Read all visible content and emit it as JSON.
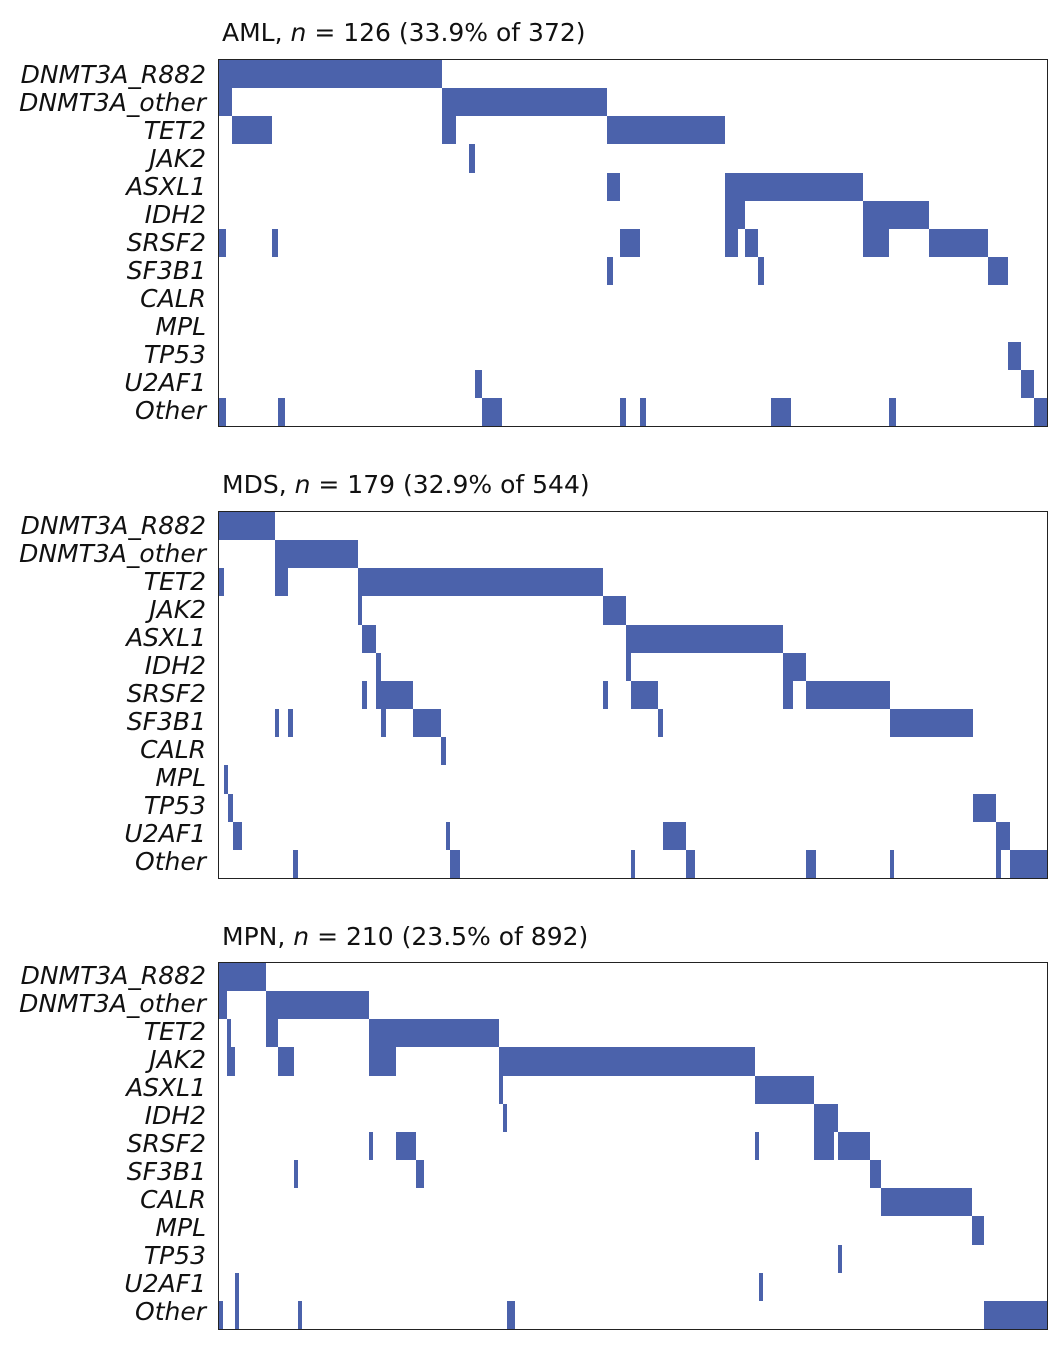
{
  "chart_data": [
    {
      "type": "heatmap",
      "title": {
        "cohort": "AML",
        "sep": ", ",
        "n_label": "n",
        "rest": " = 126 (33.9% of 372)"
      },
      "n_samples": 126,
      "total": 372,
      "percent": 33.9,
      "rows": [
        "DNMT3A_R882",
        "DNMT3A_other",
        "TET2",
        "JAK2",
        "ASXL1",
        "IDH2",
        "SRSF2",
        "SF3B1",
        "CALR",
        "MPL",
        "TP53",
        "U2AF1",
        "Other"
      ],
      "mutation_color": "#4B62AB",
      "mutated_segments": [
        {
          "gene": "DNMT3A_R882",
          "start": 0,
          "end": 34
        },
        {
          "gene": "DNMT3A_other",
          "start": 0,
          "end": 2
        },
        {
          "gene": "DNMT3A_other",
          "start": 34,
          "end": 59
        },
        {
          "gene": "TET2",
          "start": 2,
          "end": 8
        },
        {
          "gene": "TET2",
          "start": 34,
          "end": 36
        },
        {
          "gene": "TET2",
          "start": 59,
          "end": 77
        },
        {
          "gene": "JAK2",
          "start": 38,
          "end": 39
        },
        {
          "gene": "ASXL1",
          "start": 59,
          "end": 61
        },
        {
          "gene": "ASXL1",
          "start": 77,
          "end": 98
        },
        {
          "gene": "IDH2",
          "start": 77,
          "end": 80
        },
        {
          "gene": "IDH2",
          "start": 98,
          "end": 108
        },
        {
          "gene": "SRSF2",
          "start": 0,
          "end": 1
        },
        {
          "gene": "SRSF2",
          "start": 8,
          "end": 9
        },
        {
          "gene": "SRSF2",
          "start": 61,
          "end": 64
        },
        {
          "gene": "SRSF2",
          "start": 77,
          "end": 79
        },
        {
          "gene": "SRSF2",
          "start": 80,
          "end": 82
        },
        {
          "gene": "SRSF2",
          "start": 98,
          "end": 102
        },
        {
          "gene": "SRSF2",
          "start": 108,
          "end": 117
        },
        {
          "gene": "SF3B1",
          "start": 59,
          "end": 60
        },
        {
          "gene": "SF3B1",
          "start": 82,
          "end": 83
        },
        {
          "gene": "SF3B1",
          "start": 117,
          "end": 120
        },
        {
          "gene": "TP53",
          "start": 120,
          "end": 122
        },
        {
          "gene": "U2AF1",
          "start": 39,
          "end": 40
        },
        {
          "gene": "U2AF1",
          "start": 122,
          "end": 124
        },
        {
          "gene": "Other",
          "start": 0,
          "end": 1
        },
        {
          "gene": "Other",
          "start": 9,
          "end": 10
        },
        {
          "gene": "Other",
          "start": 40,
          "end": 43
        },
        {
          "gene": "Other",
          "start": 61,
          "end": 62
        },
        {
          "gene": "Other",
          "start": 64,
          "end": 65
        },
        {
          "gene": "Other",
          "start": 84,
          "end": 87
        },
        {
          "gene": "Other",
          "start": 102,
          "end": 103
        },
        {
          "gene": "Other",
          "start": 124,
          "end": 126
        }
      ]
    },
    {
      "type": "heatmap",
      "title": {
        "cohort": "MDS",
        "sep": ", ",
        "n_label": "n",
        "rest": " = 179 (32.9% of 544)"
      },
      "n_samples": 179,
      "total": 544,
      "percent": 32.9,
      "rows": [
        "DNMT3A_R882",
        "DNMT3A_other",
        "TET2",
        "JAK2",
        "ASXL1",
        "IDH2",
        "SRSF2",
        "SF3B1",
        "CALR",
        "MPL",
        "TP53",
        "U2AF1",
        "Other"
      ],
      "mutation_color": "#4B62AB",
      "mutated_segments": [
        {
          "gene": "DNMT3A_R882",
          "start": 0,
          "end": 12
        },
        {
          "gene": "DNMT3A_other",
          "start": 12,
          "end": 30
        },
        {
          "gene": "TET2",
          "start": 0,
          "end": 1
        },
        {
          "gene": "TET2",
          "start": 12,
          "end": 15
        },
        {
          "gene": "TET2",
          "start": 30,
          "end": 83
        },
        {
          "gene": "JAK2",
          "start": 30,
          "end": 31
        },
        {
          "gene": "JAK2",
          "start": 83,
          "end": 88
        },
        {
          "gene": "ASXL1",
          "start": 31,
          "end": 34
        },
        {
          "gene": "ASXL1",
          "start": 88,
          "end": 122
        },
        {
          "gene": "IDH2",
          "start": 34,
          "end": 35
        },
        {
          "gene": "IDH2",
          "start": 88,
          "end": 89
        },
        {
          "gene": "IDH2",
          "start": 122,
          "end": 127
        },
        {
          "gene": "SRSF2",
          "start": 31,
          "end": 32
        },
        {
          "gene": "SRSF2",
          "start": 34,
          "end": 42
        },
        {
          "gene": "SRSF2",
          "start": 83,
          "end": 84
        },
        {
          "gene": "SRSF2",
          "start": 89,
          "end": 95
        },
        {
          "gene": "SRSF2",
          "start": 122,
          "end": 124
        },
        {
          "gene": "SRSF2",
          "start": 127,
          "end": 145
        },
        {
          "gene": "SF3B1",
          "start": 12,
          "end": 13
        },
        {
          "gene": "SF3B1",
          "start": 15,
          "end": 16
        },
        {
          "gene": "SF3B1",
          "start": 35,
          "end": 36
        },
        {
          "gene": "SF3B1",
          "start": 42,
          "end": 48
        },
        {
          "gene": "SF3B1",
          "start": 95,
          "end": 96
        },
        {
          "gene": "SF3B1",
          "start": 145,
          "end": 163
        },
        {
          "gene": "CALR",
          "start": 48,
          "end": 49
        },
        {
          "gene": "MPL",
          "start": 1,
          "end": 2
        },
        {
          "gene": "TP53",
          "start": 2,
          "end": 3
        },
        {
          "gene": "TP53",
          "start": 163,
          "end": 168
        },
        {
          "gene": "U2AF1",
          "start": 3,
          "end": 5
        },
        {
          "gene": "U2AF1",
          "start": 49,
          "end": 50
        },
        {
          "gene": "U2AF1",
          "start": 96,
          "end": 101
        },
        {
          "gene": "U2AF1",
          "start": 168,
          "end": 171
        },
        {
          "gene": "Other",
          "start": 16,
          "end": 17
        },
        {
          "gene": "Other",
          "start": 50,
          "end": 52
        },
        {
          "gene": "Other",
          "start": 89,
          "end": 90
        },
        {
          "gene": "Other",
          "start": 101,
          "end": 103
        },
        {
          "gene": "Other",
          "start": 127,
          "end": 129
        },
        {
          "gene": "Other",
          "start": 145,
          "end": 146
        },
        {
          "gene": "Other",
          "start": 168,
          "end": 169
        },
        {
          "gene": "Other",
          "start": 171,
          "end": 179
        }
      ]
    },
    {
      "type": "heatmap",
      "title": {
        "cohort": "MPN",
        "sep": ", ",
        "n_label": "n",
        "rest": " = 210 (23.5% of 892)"
      },
      "n_samples": 210,
      "total": 892,
      "percent": 23.5,
      "rows": [
        "DNMT3A_R882",
        "DNMT3A_other",
        "TET2",
        "JAK2",
        "ASXL1",
        "IDH2",
        "SRSF2",
        "SF3B1",
        "CALR",
        "MPL",
        "TP53",
        "U2AF1",
        "Other"
      ],
      "mutation_color": "#4B62AB",
      "mutated_segments": [
        {
          "gene": "DNMT3A_R882",
          "start": 0,
          "end": 12
        },
        {
          "gene": "DNMT3A_other",
          "start": 0,
          "end": 2
        },
        {
          "gene": "DNMT3A_other",
          "start": 12,
          "end": 38
        },
        {
          "gene": "TET2",
          "start": 2,
          "end": 3
        },
        {
          "gene": "TET2",
          "start": 12,
          "end": 15
        },
        {
          "gene": "TET2",
          "start": 38,
          "end": 71
        },
        {
          "gene": "JAK2",
          "start": 2,
          "end": 4
        },
        {
          "gene": "JAK2",
          "start": 15,
          "end": 19
        },
        {
          "gene": "JAK2",
          "start": 38,
          "end": 45
        },
        {
          "gene": "JAK2",
          "start": 71,
          "end": 136
        },
        {
          "gene": "ASXL1",
          "start": 71,
          "end": 72
        },
        {
          "gene": "ASXL1",
          "start": 136,
          "end": 151
        },
        {
          "gene": "IDH2",
          "start": 72,
          "end": 73
        },
        {
          "gene": "IDH2",
          "start": 151,
          "end": 157
        },
        {
          "gene": "SRSF2",
          "start": 38,
          "end": 39
        },
        {
          "gene": "SRSF2",
          "start": 45,
          "end": 50
        },
        {
          "gene": "SRSF2",
          "start": 136,
          "end": 137
        },
        {
          "gene": "SRSF2",
          "start": 151,
          "end": 156
        },
        {
          "gene": "SRSF2",
          "start": 157,
          "end": 165
        },
        {
          "gene": "SF3B1",
          "start": 19,
          "end": 20
        },
        {
          "gene": "SF3B1",
          "start": 50,
          "end": 52
        },
        {
          "gene": "SF3B1",
          "start": 165,
          "end": 168
        },
        {
          "gene": "CALR",
          "start": 168,
          "end": 191
        },
        {
          "gene": "MPL",
          "start": 191,
          "end": 194
        },
        {
          "gene": "TP53",
          "start": 157,
          "end": 158
        },
        {
          "gene": "U2AF1",
          "start": 4,
          "end": 5
        },
        {
          "gene": "U2AF1",
          "start": 137,
          "end": 138
        },
        {
          "gene": "Other",
          "start": 0,
          "end": 1
        },
        {
          "gene": "Other",
          "start": 4,
          "end": 5
        },
        {
          "gene": "Other",
          "start": 20,
          "end": 21
        },
        {
          "gene": "Other",
          "start": 73,
          "end": 75
        },
        {
          "gene": "Other",
          "start": 194,
          "end": 210
        }
      ]
    }
  ]
}
